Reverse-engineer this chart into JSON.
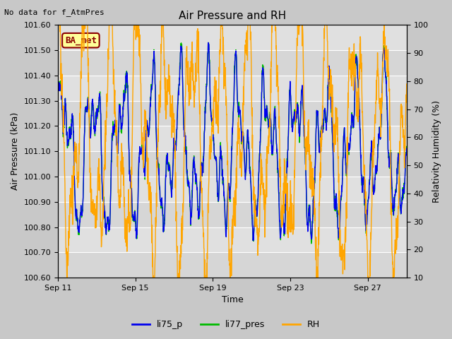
{
  "title": "Air Pressure and RH",
  "top_left_text": "No data for f_AtmPres",
  "annotation_box": "BA_met",
  "xlabel": "Time",
  "ylabel_left": "Air Pressure (kPa)",
  "ylabel_right": "Relativity Humidity (%)",
  "ylim_left": [
    100.6,
    101.6
  ],
  "ylim_right": [
    10,
    100
  ],
  "xtick_labels": [
    "Sep 11",
    "Sep 15",
    "Sep 19",
    "Sep 23",
    "Sep 27"
  ],
  "xtick_positions": [
    0,
    4,
    8,
    12,
    16
  ],
  "yticks_left": [
    100.6,
    100.7,
    100.8,
    100.9,
    101.0,
    101.1,
    101.2,
    101.3,
    101.4,
    101.5,
    101.6
  ],
  "yticks_right": [
    10,
    20,
    30,
    40,
    50,
    60,
    70,
    80,
    90,
    100
  ],
  "color_li75": "#0000EE",
  "color_li77": "#00BB00",
  "color_rh": "#FFA500",
  "fig_bg_color": "#C8C8C8",
  "plot_bg_color": "#E0E0E0",
  "legend_labels": [
    "li75_p",
    "li77_pres",
    "RH"
  ],
  "annotation_bg": "#FFFF99",
  "annotation_border": "#8B0000",
  "seed": 7,
  "n_points": 1800,
  "xlim": [
    0,
    18
  ],
  "linewidth": 1.0,
  "title_fontsize": 11,
  "label_fontsize": 9,
  "tick_fontsize": 8,
  "legend_fontsize": 9
}
